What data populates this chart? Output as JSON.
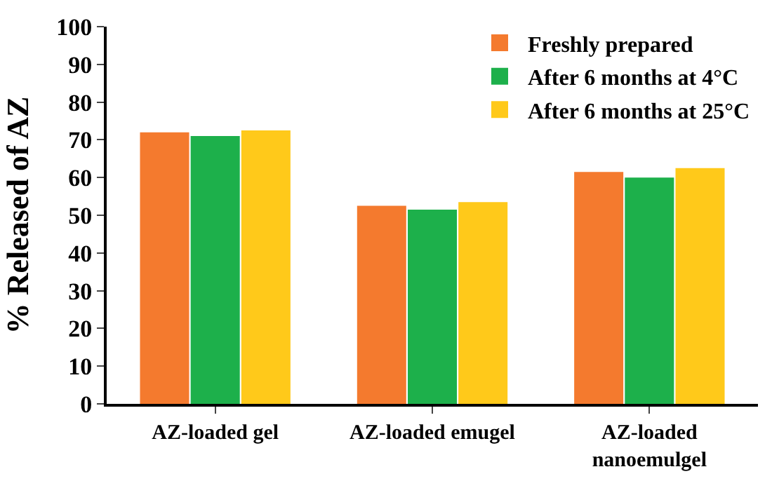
{
  "chart_data": {
    "type": "bar",
    "ylabel": "% Released of AZ",
    "categories": [
      "AZ-loaded gel",
      "AZ-loaded emugel",
      "AZ-loaded nanoemulgel"
    ],
    "series": [
      {
        "name": "Freshly prepared",
        "color": "#f47a2e",
        "values": [
          72,
          52.5,
          61.5
        ]
      },
      {
        "name": "After 6 months at 4°C",
        "color": "#1db04b",
        "values": [
          71,
          51.5,
          60
        ]
      },
      {
        "name": "After 6 months at 25°C",
        "color": "#ffc91a",
        "values": [
          72.5,
          53.5,
          62.5
        ]
      }
    ],
    "ylim": [
      0,
      100
    ],
    "yticks": [
      0,
      10,
      20,
      30,
      40,
      50,
      60,
      70,
      80,
      90,
      100
    ],
    "grid": false,
    "legend": "top right"
  }
}
